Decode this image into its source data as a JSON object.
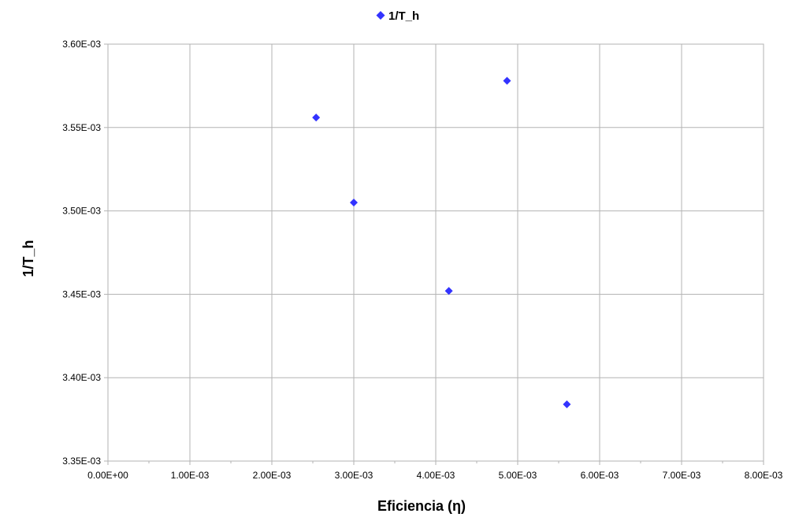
{
  "chart_data": {
    "type": "scatter",
    "title": "",
    "xlabel": "Eficiencia (η)",
    "ylabel": "1/T_h",
    "xlim": [
      0,
      0.008
    ],
    "ylim": [
      0.00335,
      0.0036
    ],
    "x_ticks": [
      "0.00E+00",
      "1.00E-03",
      "2.00E-03",
      "3.00E-03",
      "4.00E-03",
      "5.00E-03",
      "6.00E-03",
      "7.00E-03",
      "8.00E-03"
    ],
    "y_ticks": [
      "3.35E-03",
      "3.40E-03",
      "3.45E-03",
      "3.50E-03",
      "3.55E-03",
      "3.60E-03"
    ],
    "grid": true,
    "legend_position": "top",
    "series": [
      {
        "name": "1/T_h",
        "marker": "diamond",
        "color": "#3333ff",
        "x": [
          0.00254,
          0.003,
          0.00416,
          0.00487,
          0.0056
        ],
        "y": [
          0.003556,
          0.003505,
          0.003452,
          0.003578,
          0.003384
        ]
      }
    ]
  }
}
